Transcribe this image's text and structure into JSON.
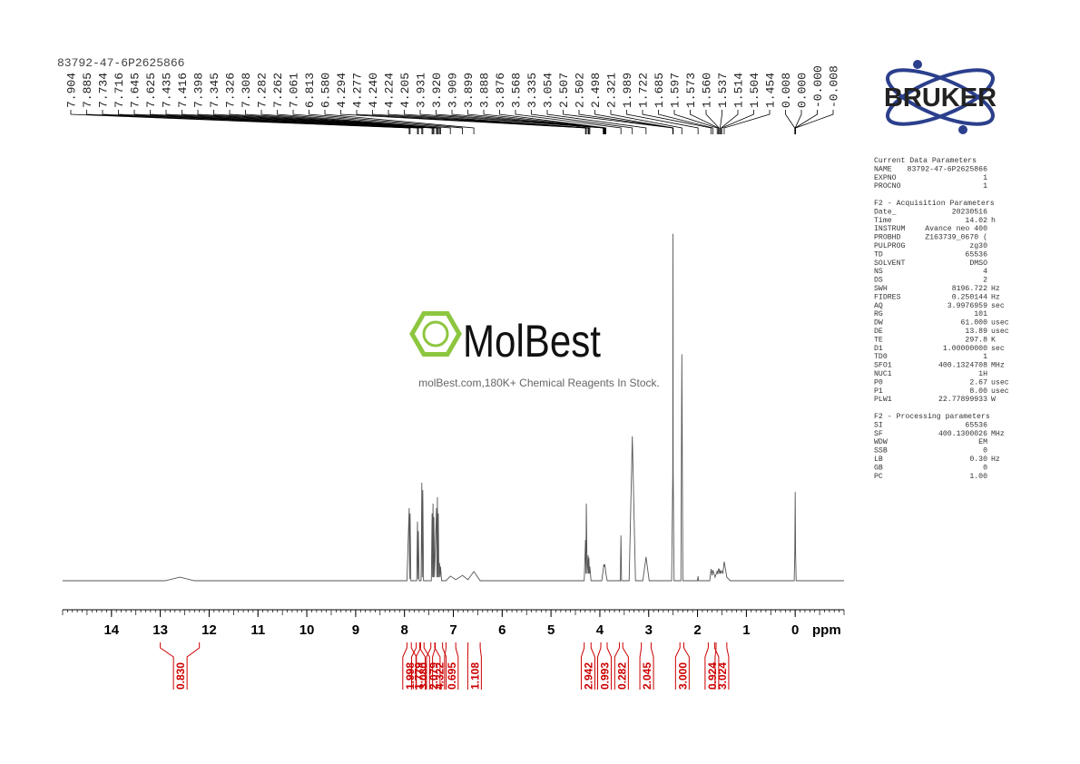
{
  "title": "83792-47-6P2625866",
  "logo": {
    "brand": "BRUKER"
  },
  "watermark": {
    "name": "MolBest",
    "tagline": "molBest.com,180K+ Chemical Reagents In Stock."
  },
  "chart_data": {
    "type": "nmr",
    "x": [
      15,
      12.9,
      12.6,
      12.3,
      7.95,
      7.904,
      7.895,
      7.885,
      7.87,
      7.75,
      7.734,
      7.725,
      7.716,
      7.7,
      7.66,
      7.645,
      7.635,
      7.625,
      7.61,
      7.45,
      7.435,
      7.425,
      7.416,
      7.407,
      7.398,
      7.385,
      7.345,
      7.335,
      7.326,
      7.317,
      7.308,
      7.295,
      7.282,
      7.272,
      7.262,
      7.24,
      7.15,
      7.061,
      6.95,
      6.813,
      6.7,
      6.58,
      6.45,
      4.32,
      4.294,
      4.285,
      4.277,
      4.26,
      4.24,
      4.232,
      4.224,
      4.214,
      4.205,
      4.18,
      3.96,
      3.931,
      3.92,
      3.909,
      3.899,
      3.888,
      3.876,
      3.85,
      3.58,
      3.568,
      3.555,
      3.4,
      3.335,
      3.27,
      3.12,
      3.054,
      2.99,
      2.53,
      2.507,
      2.502,
      2.498,
      2.48,
      2.34,
      2.321,
      2.3,
      2.0,
      1.989,
      1.98,
      1.75,
      1.722,
      1.7,
      1.685,
      1.64,
      1.597,
      1.585,
      1.573,
      1.56,
      1.548,
      1.537,
      1.525,
      1.514,
      1.504,
      1.48,
      1.454,
      1.4,
      1.33,
      0.02,
      0.008,
      0,
      -0.008,
      -0.02,
      -1
    ],
    "values": [
      0,
      0,
      1,
      0,
      0,
      20.5,
      0.5,
      19,
      0,
      0,
      16.7,
      0.5,
      14,
      0,
      0,
      27.7,
      1,
      25.6,
      0,
      0,
      19,
      1,
      21.8,
      1,
      18,
      1,
      20.5,
      1,
      23.6,
      1,
      19,
      1,
      5,
      1,
      4,
      0,
      0,
      1.3,
      0.3,
      1.5,
      0.3,
      2.6,
      0,
      0,
      11.5,
      2,
      21.8,
      2,
      7.2,
      2,
      6.5,
      2,
      4,
      0,
      0,
      3,
      4.6,
      4,
      4.6,
      3.5,
      2,
      0,
      0,
      12.8,
      0,
      0,
      40.8,
      0,
      0,
      6.7,
      0,
      0,
      30,
      98,
      30,
      0,
      0,
      64,
      0,
      0,
      1.3,
      0,
      0,
      3.3,
      1.5,
      3,
      1,
      2.8,
      1.8,
      3.3,
      3.3,
      2,
      3,
      2,
      2.5,
      2.8,
      2,
      5.4,
      1,
      0,
      0,
      8,
      25.1,
      8,
      0,
      0
    ],
    "xlim": [
      15,
      -1
    ],
    "ylim": [
      0,
      100
    ],
    "xticks": [
      14,
      13,
      12,
      11,
      10,
      9,
      8,
      7,
      6,
      5,
      4,
      3,
      2,
      1,
      0
    ],
    "xlabel": "ppm",
    "color": "#555555",
    "peak_labels": [
      7.904,
      7.885,
      7.734,
      7.716,
      7.645,
      7.625,
      7.435,
      7.416,
      7.398,
      7.345,
      7.326,
      7.308,
      7.282,
      7.262,
      7.061,
      6.813,
      {
        "value": 6.58,
        "label": "6.580"
      },
      4.294,
      4.277,
      {
        "value": 4.24,
        "label": "4.240"
      },
      4.224,
      4.205,
      3.931,
      {
        "value": 3.92,
        "label": "3.920"
      },
      3.909,
      3.899,
      3.888,
      3.876,
      3.568,
      3.335,
      3.054,
      2.507,
      2.502,
      2.498,
      2.321,
      1.989,
      1.722,
      1.685,
      1.597,
      1.573,
      {
        "value": 1.56,
        "label": "1.560"
      },
      1.537,
      1.514,
      1.504,
      1.454,
      0.008,
      {
        "value": 0,
        "label": "0.000"
      },
      {
        "value": 0,
        "label": "-0.000"
      },
      -0.008
    ],
    "integrals": [
      {
        "range": [
          13.0,
          12.2
        ],
        "value": 0.83,
        "label": "0.830"
      },
      {
        "range": [
          7.95,
          7.86
        ],
        "value": 1.998,
        "label": "1.998"
      },
      {
        "range": [
          7.76,
          7.69
        ],
        "value": 1.779,
        "label": "1.779"
      },
      {
        "range": [
          7.67,
          7.6
        ],
        "value": 3.08,
        "label": "3.080"
      },
      {
        "range": [
          7.46,
          7.38
        ],
        "value": 2.079,
        "label": "2.079"
      },
      {
        "range": [
          7.37,
          7.22
        ],
        "value": 4.322,
        "label": "4.322"
      },
      {
        "range": [
          7.15,
          6.95
        ],
        "value": 0.695,
        "label": "0.695"
      },
      {
        "range": [
          6.7,
          6.45
        ],
        "value": 1.108,
        "label": "1.108"
      },
      {
        "range": [
          4.32,
          4.18
        ],
        "value": 2.942,
        "label": "2.942"
      },
      {
        "range": [
          3.98,
          3.85
        ],
        "value": 0.993,
        "label": "0.993"
      },
      {
        "range": [
          3.6,
          3.53
        ],
        "value": 0.282,
        "label": "0.282"
      },
      {
        "range": [
          3.15,
          2.95
        ],
        "value": 2.045,
        "label": "2.045"
      },
      {
        "range": [
          2.36,
          2.28
        ],
        "value": 3,
        "label": "3.000"
      },
      {
        "range": [
          1.78,
          1.65
        ],
        "value": 0.924,
        "label": "0.924"
      },
      {
        "range": [
          1.62,
          1.4
        ],
        "value": 3.024,
        "label": "3.024"
      }
    ],
    "integral_color": "#cc0000"
  },
  "parameters": [
    {
      "title": "Current Data Parameters",
      "rows": [
        [
          "NAME",
          "83792-47-6P2625866"
        ],
        [
          "EXPNO",
          "1"
        ],
        [
          "PROCNO",
          "1"
        ]
      ]
    },
    {
      "title": "F2 - Acquisition Parameters",
      "rows": [
        [
          "Date_",
          "20230516"
        ],
        [
          "Time",
          "14.02",
          "h"
        ],
        [
          "INSTRUM",
          "Avance neo 400"
        ],
        [
          "PROBHD",
          "Z163739_0670 ("
        ],
        [
          "PULPROG",
          "zg30"
        ],
        [
          "TD",
          "65536"
        ],
        [
          "SOLVENT",
          "DMSO"
        ],
        [
          "NS",
          "4"
        ],
        [
          "DS",
          "2"
        ],
        [
          "SWH",
          "8196.722",
          "Hz"
        ],
        [
          "FIDRES",
          "0.250144",
          "Hz"
        ],
        [
          "AQ",
          "3.9976959",
          "sec"
        ],
        [
          "RG",
          "101"
        ],
        [
          "DW",
          "61.000",
          "usec"
        ],
        [
          "DE",
          "13.89",
          "usec"
        ],
        [
          "TE",
          "297.8",
          "K"
        ],
        [
          "D1",
          "1.00000000",
          "sec"
        ],
        [
          "TD0",
          "1"
        ],
        [
          "SFO1",
          "400.1324708",
          "MHz"
        ],
        [
          "NUC1",
          "1H"
        ],
        [
          "P0",
          "2.67",
          "usec"
        ],
        [
          "P1",
          "8.00",
          "usec"
        ],
        [
          "PLW1",
          "22.77899933",
          "W"
        ]
      ]
    },
    {
      "title": "F2 - Processing parameters",
      "rows": [
        [
          "SI",
          "65536"
        ],
        [
          "SF",
          "400.1300026",
          "MHz"
        ],
        [
          "WDW",
          "EM"
        ],
        [
          "SSB",
          "0"
        ],
        [
          "LB",
          "0.30",
          "Hz"
        ],
        [
          "GB",
          "0"
        ],
        [
          "PC",
          "1.00"
        ]
      ]
    }
  ]
}
